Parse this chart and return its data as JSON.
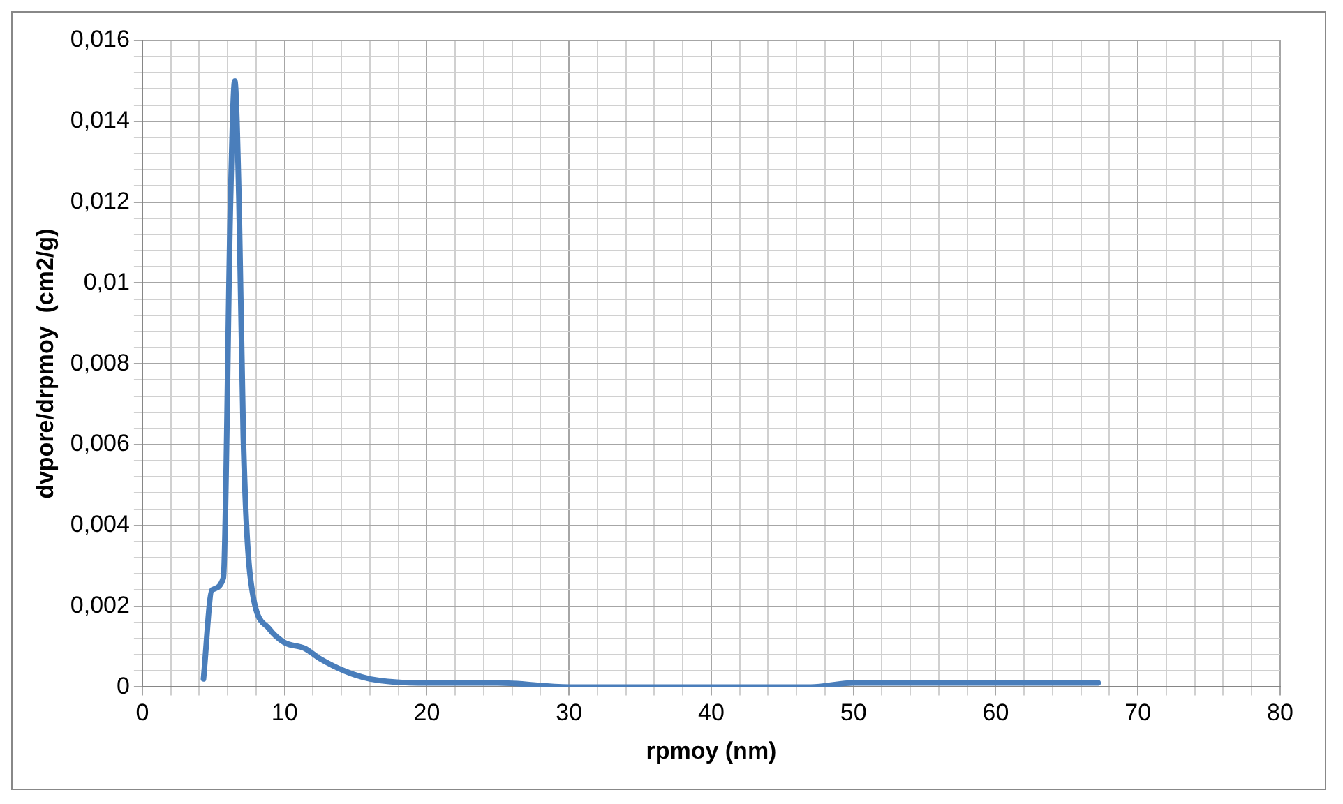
{
  "chart_data": {
    "type": "line",
    "xlabel": "rpmoy (nm)",
    "ylabel": "dvpore/drpmoy  (cm2/g)",
    "series": [
      {
        "color": "#4a7ebb",
        "x": [
          4.3,
          4.9,
          5.7,
          6.2,
          6.5,
          6.8,
          7.1,
          7.6,
          8.9,
          10,
          11.4,
          12.5,
          14.2,
          16,
          20,
          25,
          30,
          47,
          50,
          62,
          67.2
        ],
        "values": [
          0.0002,
          0.0024,
          0.0027,
          0.012,
          0.015,
          0.012,
          0.0062,
          0.0027,
          0.00145,
          0.0011,
          0.00096,
          0.0007,
          0.0004,
          0.0002,
          0.0001,
          0.0001,
          0,
          0,
          0.0001,
          0.0001,
          0.0001
        ]
      }
    ],
    "xlim": [
      0,
      80
    ],
    "ylim": [
      0,
      0.016
    ],
    "xticks": [
      0,
      {
        "value": 2,
        "label": null
      },
      {
        "value": 4,
        "label": null
      },
      {
        "value": 6,
        "label": null
      },
      {
        "value": 8,
        "label": null
      },
      10,
      {
        "value": 12,
        "label": null
      },
      {
        "value": 14,
        "label": null
      },
      {
        "value": 16,
        "label": null
      },
      {
        "value": 18,
        "label": null
      },
      20,
      {
        "value": 22,
        "label": null
      },
      {
        "value": 24,
        "label": null
      },
      {
        "value": 26,
        "label": null
      },
      {
        "value": 28,
        "label": null
      },
      30,
      {
        "value": 32,
        "label": null
      },
      {
        "value": 34,
        "label": null
      },
      {
        "value": 36,
        "label": null
      },
      {
        "value": 38,
        "label": null
      },
      40,
      {
        "value": 42,
        "label": null
      },
      {
        "value": 44,
        "label": null
      },
      {
        "value": 46,
        "label": null
      },
      {
        "value": 48,
        "label": null
      },
      50,
      {
        "value": 52,
        "label": null
      },
      {
        "value": 54,
        "label": null
      },
      {
        "value": 56,
        "label": null
      },
      {
        "value": 58,
        "label": null
      },
      60,
      {
        "value": 62,
        "label": null
      },
      {
        "value": 64,
        "label": null
      },
      {
        "value": 66,
        "label": null
      },
      {
        "value": 68,
        "label": null
      },
      70,
      {
        "value": 72,
        "label": null
      },
      {
        "value": 74,
        "label": null
      },
      {
        "value": 76,
        "label": null
      },
      {
        "value": 78,
        "label": null
      },
      80
    ],
    "yticks": [
      {
        "value": 0,
        "label": "0"
      },
      {
        "value": 0.0004,
        "label": null
      },
      {
        "value": 0.0008,
        "label": null
      },
      {
        "value": 0.0012,
        "label": null
      },
      {
        "value": 0.0016,
        "label": null
      },
      {
        "value": 0.002,
        "label": "0,002"
      },
      {
        "value": 0.0024,
        "label": null
      },
      {
        "value": 0.0028,
        "label": null
      },
      {
        "value": 0.0032,
        "label": null
      },
      {
        "value": 0.0036,
        "label": null
      },
      {
        "value": 0.004,
        "label": "0,004"
      },
      {
        "value": 0.0044,
        "label": null
      },
      {
        "value": 0.0048,
        "label": null
      },
      {
        "value": 0.0052,
        "label": null
      },
      {
        "value": 0.0056,
        "label": null
      },
      {
        "value": 0.006,
        "label": "0,006"
      },
      {
        "value": 0.0064,
        "label": null
      },
      {
        "value": 0.0068,
        "label": null
      },
      {
        "value": 0.0072,
        "label": null
      },
      {
        "value": 0.0076,
        "label": null
      },
      {
        "value": 0.008,
        "label": "0,008"
      },
      {
        "value": 0.0084,
        "label": null
      },
      {
        "value": 0.0088,
        "label": null
      },
      {
        "value": 0.0092,
        "label": null
      },
      {
        "value": 0.0096,
        "label": null
      },
      {
        "value": 0.01,
        "label": "0,01"
      },
      {
        "value": 0.0104,
        "label": null
      },
      {
        "value": 0.0108,
        "label": null
      },
      {
        "value": 0.0112,
        "label": null
      },
      {
        "value": 0.0116,
        "label": null
      },
      {
        "value": 0.012,
        "label": "0,012"
      },
      {
        "value": 0.0124,
        "label": null
      },
      {
        "value": 0.0128,
        "label": null
      },
      {
        "value": 0.0132,
        "label": null
      },
      {
        "value": 0.0136,
        "label": null
      },
      {
        "value": 0.014,
        "label": "0,014"
      },
      {
        "value": 0.0144,
        "label": null
      },
      {
        "value": 0.0148,
        "label": null
      },
      {
        "value": 0.0152,
        "label": null
      },
      {
        "value": 0.0156,
        "label": null
      },
      {
        "value": 0.016,
        "label": "0,016"
      }
    ],
    "grid": true,
    "legend": false,
    "marker": "none",
    "line_style": "solid"
  }
}
